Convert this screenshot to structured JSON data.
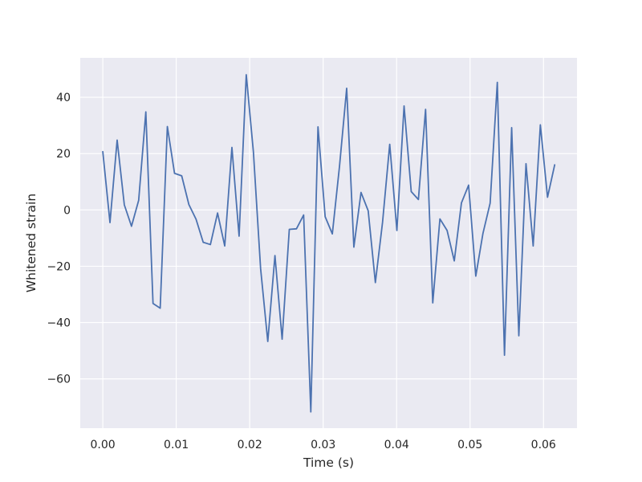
{
  "chart_data": {
    "type": "line",
    "title": "",
    "xlabel": "Time (s)",
    "ylabel": "Whitened strain",
    "xlim": [
      -0.00307,
      0.06456
    ],
    "ylim": [
      -77.5,
      54.0
    ],
    "xticks": [
      0.0,
      0.01,
      0.02,
      0.03,
      0.04,
      0.05,
      0.06
    ],
    "xtick_labels": [
      "0.00",
      "0.01",
      "0.02",
      "0.03",
      "0.04",
      "0.05",
      "0.06"
    ],
    "yticks": [
      -60,
      -40,
      -20,
      0,
      20,
      40
    ],
    "ytick_labels": [
      "−60",
      "−40",
      "−20",
      "0",
      "20",
      "40"
    ],
    "grid": true,
    "legend": "none",
    "colors": {
      "background": "#eaeaf2",
      "grid": "#ffffff",
      "line": "#4c72b0"
    },
    "series": [
      {
        "x": [
          0.0,
          0.000977,
          0.001953,
          0.00293,
          0.003906,
          0.004883,
          0.005859,
          0.006836,
          0.007813,
          0.008789,
          0.009766,
          0.010742,
          0.011719,
          0.012695,
          0.013672,
          0.014648,
          0.015625,
          0.016602,
          0.017578,
          0.018555,
          0.019531,
          0.020508,
          0.021484,
          0.022461,
          0.023438,
          0.024414,
          0.025391,
          0.026367,
          0.027344,
          0.02832,
          0.029297,
          0.030273,
          0.03125,
          0.032227,
          0.033203,
          0.03418,
          0.035156,
          0.036133,
          0.037109,
          0.038086,
          0.039063,
          0.040039,
          0.041016,
          0.041992,
          0.042969,
          0.043945,
          0.044922,
          0.045898,
          0.046875,
          0.047852,
          0.048828,
          0.049805,
          0.050781,
          0.051758,
          0.052734,
          0.053711,
          0.054688,
          0.055664,
          0.056641,
          0.057617,
          0.058594,
          0.05957,
          0.060547,
          0.061523
        ],
        "y": [
          20.7,
          -4.5,
          24.8,
          1.8,
          -5.8,
          3.4,
          34.8,
          -33.2,
          -34.9,
          29.6,
          13.0,
          12.1,
          1.9,
          -3.3,
          -11.5,
          -12.3,
          -1.1,
          -12.8,
          22.2,
          -9.3,
          48.0,
          20.5,
          -20.8,
          -46.7,
          -16.2,
          -45.9,
          -6.9,
          -6.7,
          -1.8,
          -71.7,
          29.5,
          -2.4,
          -8.5,
          15.5,
          43.2,
          -13.2,
          6.2,
          -0.3,
          -25.8,
          -4.4,
          23.3,
          -7.3,
          36.9,
          6.5,
          3.7,
          35.7,
          -33.0,
          -3.2,
          -7.3,
          -18.1,
          2.5,
          8.8,
          -23.5,
          -8.3,
          2.4,
          45.3,
          -51.6,
          29.2,
          -44.7,
          16.4,
          -12.8,
          30.2,
          4.5,
          16.0
        ]
      }
    ]
  }
}
